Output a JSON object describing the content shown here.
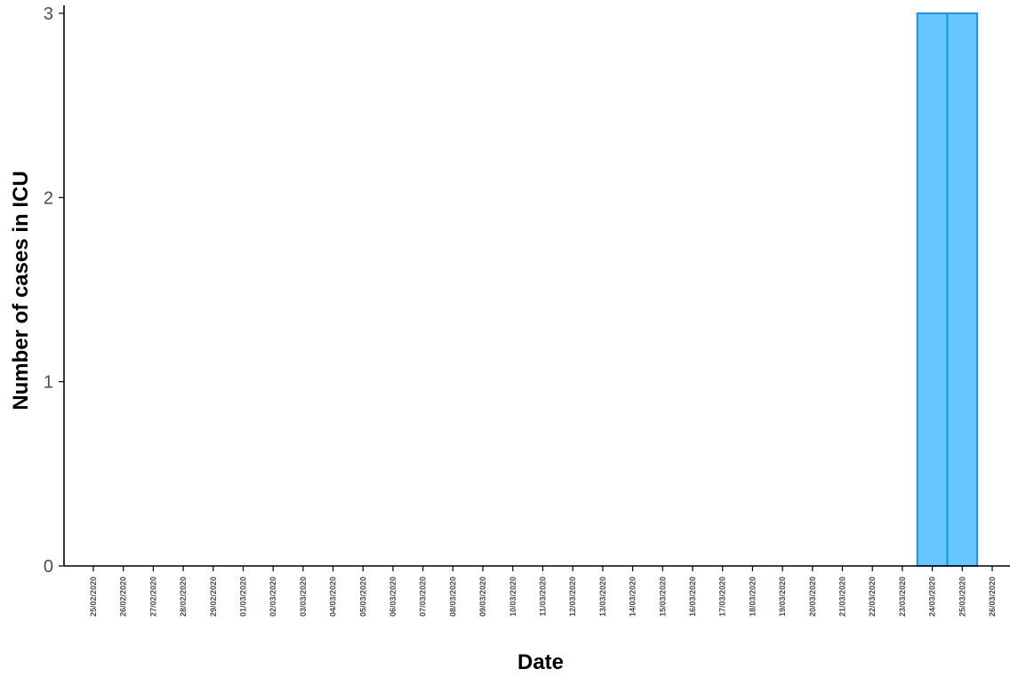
{
  "chart_data": {
    "type": "bar",
    "xlabel": "Date",
    "ylabel": "Number of cases in ICU",
    "ylim": [
      0,
      3
    ],
    "yticks": [
      "0",
      "1",
      "2",
      "3"
    ],
    "grid": false,
    "categories": [
      "25/02/2020",
      "26/02/2020",
      "27/02/2020",
      "28/02/2020",
      "29/02/2020",
      "01/03/2020",
      "02/03/2020",
      "03/03/2020",
      "04/03/2020",
      "05/03/2020",
      "06/03/2020",
      "07/03/2020",
      "08/03/2020",
      "09/03/2020",
      "10/03/2020",
      "11/03/2020",
      "12/03/2020",
      "13/03/2020",
      "14/03/2020",
      "15/03/2020",
      "16/03/2020",
      "17/03/2020",
      "18/03/2020",
      "19/03/2020",
      "20/03/2020",
      "21/03/2020",
      "22/03/2020",
      "23/03/2020",
      "24/03/2020",
      "25/03/2020",
      "26/03/2020"
    ],
    "bars": [
      {
        "x": "24/03/2020",
        "value": 3
      },
      {
        "x": "25/03/2020",
        "value": 3
      }
    ],
    "colors": {
      "bar_fill": "#66c6ff",
      "bar_stroke": "#1e90e0"
    }
  }
}
